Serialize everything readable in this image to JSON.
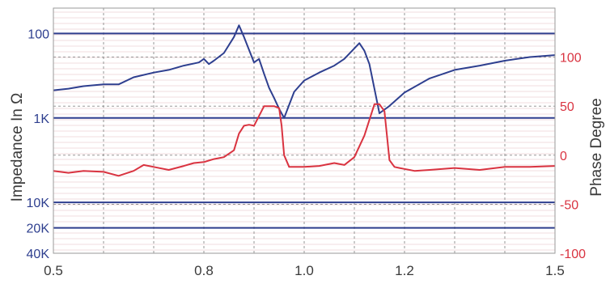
{
  "chart_data": {
    "type": "line",
    "title": "",
    "xlabel": "",
    "ylabel_left": "Impedance In Ω",
    "ylabel_right": "Phase Degree",
    "xlim": [
      0.5,
      1.5
    ],
    "x_ticks": [
      {
        "value": 0.5,
        "label": "0.5"
      },
      {
        "value": 0.8,
        "label": "0.8"
      },
      {
        "value": 1.0,
        "label": "1.0"
      },
      {
        "value": 1.2,
        "label": "1.2"
      },
      {
        "value": 1.5,
        "label": "1.5"
      }
    ],
    "left_axis": {
      "scale": "log",
      "inverted": true,
      "ylim": [
        50,
        40000
      ],
      "ticks": [
        {
          "value": 100,
          "label": "100"
        },
        {
          "value": 1000,
          "label": "1K"
        },
        {
          "value": 10000,
          "label": "10K"
        },
        {
          "value": 20000,
          "label": "20K"
        },
        {
          "value": 40000,
          "label": "40K"
        }
      ]
    },
    "right_axis": {
      "scale": "linear",
      "ylim": [
        -100,
        150
      ],
      "ticks": [
        {
          "value": 100,
          "label": "100"
        },
        {
          "value": 50,
          "label": "50"
        },
        {
          "value": 0,
          "label": "0"
        },
        {
          "value": -50,
          "label": "-50"
        },
        {
          "value": -100,
          "label": "-100"
        }
      ]
    },
    "grid": true,
    "series": [
      {
        "axis": "left",
        "color": "#2e3f8f",
        "x": [
          0.5,
          0.53,
          0.56,
          0.6,
          0.63,
          0.66,
          0.7,
          0.73,
          0.76,
          0.79,
          0.8,
          0.81,
          0.82,
          0.84,
          0.86,
          0.87,
          0.88,
          0.9,
          0.91,
          0.92,
          0.93,
          0.94,
          0.95,
          0.96,
          0.97,
          0.98,
          1.0,
          1.03,
          1.06,
          1.08,
          1.1,
          1.11,
          1.12,
          1.13,
          1.15,
          1.17,
          1.2,
          1.25,
          1.3,
          1.35,
          1.4,
          1.45,
          1.5
        ],
        "values": [
          470,
          450,
          420,
          400,
          400,
          330,
          290,
          270,
          240,
          220,
          200,
          230,
          210,
          170,
          110,
          80,
          110,
          220,
          200,
          300,
          440,
          580,
          780,
          1000,
          700,
          490,
          360,
          290,
          240,
          200,
          150,
          130,
          160,
          230,
          880,
          720,
          500,
          340,
          270,
          240,
          210,
          190,
          180
        ]
      },
      {
        "axis": "right",
        "color": "#d93340",
        "x": [
          0.5,
          0.53,
          0.56,
          0.6,
          0.63,
          0.66,
          0.68,
          0.7,
          0.73,
          0.76,
          0.78,
          0.8,
          0.82,
          0.84,
          0.86,
          0.87,
          0.88,
          0.89,
          0.9,
          0.91,
          0.92,
          0.93,
          0.94,
          0.95,
          0.955,
          0.96,
          0.97,
          1.0,
          1.03,
          1.06,
          1.08,
          1.1,
          1.12,
          1.14,
          1.15,
          1.16,
          1.17,
          1.18,
          1.19,
          1.2,
          1.22,
          1.25,
          1.3,
          1.35,
          1.4,
          1.45,
          1.5
        ],
        "values": [
          -16,
          -18,
          -16,
          -17,
          -21,
          -16,
          -10,
          -12,
          -15,
          -11,
          -8,
          -7,
          -4,
          -2,
          5,
          22,
          30,
          31,
          30,
          40,
          50,
          50,
          50,
          48,
          30,
          0,
          -12,
          -12,
          -11,
          -8,
          -10,
          -2,
          20,
          52,
          52,
          45,
          -5,
          -12,
          -13,
          -14,
          -16,
          -15,
          -13,
          -15,
          -12,
          -12,
          -11
        ]
      }
    ]
  }
}
